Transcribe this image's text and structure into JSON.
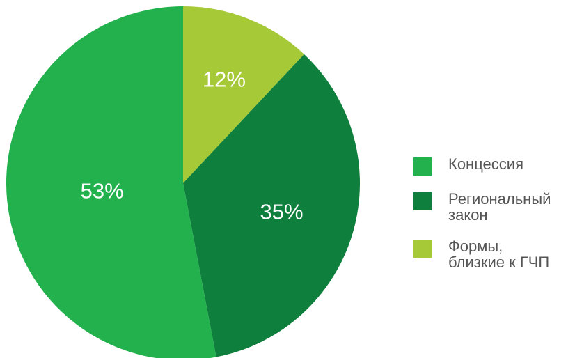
{
  "chart_data": {
    "type": "pie",
    "title": "",
    "slices": [
      {
        "label": "Концессия",
        "value": 53,
        "value_label": "53%",
        "color": "#22b14c"
      },
      {
        "label": "Региональный\nзакон",
        "value": 35,
        "value_label": "35%",
        "color": "#0e7f3c"
      },
      {
        "label": "Формы,\nблизкие к ГЧП",
        "value": 12,
        "value_label": "12%",
        "color": "#a6c937"
      }
    ],
    "start_at": "top",
    "direction": "clockwise",
    "slice_order": [
      "Формы,\nблизкие к ГЧП",
      "Региональный\nзакон",
      "Концессия"
    ],
    "legend_position": "right"
  },
  "legend": {
    "items": [
      {
        "label": "Концессия",
        "color": "#22b14c"
      },
      {
        "label": "Региональный\nзакон",
        "color": "#0e7f3c"
      },
      {
        "label": "Формы,\nблизкие к ГЧП",
        "color": "#a6c937"
      }
    ]
  }
}
